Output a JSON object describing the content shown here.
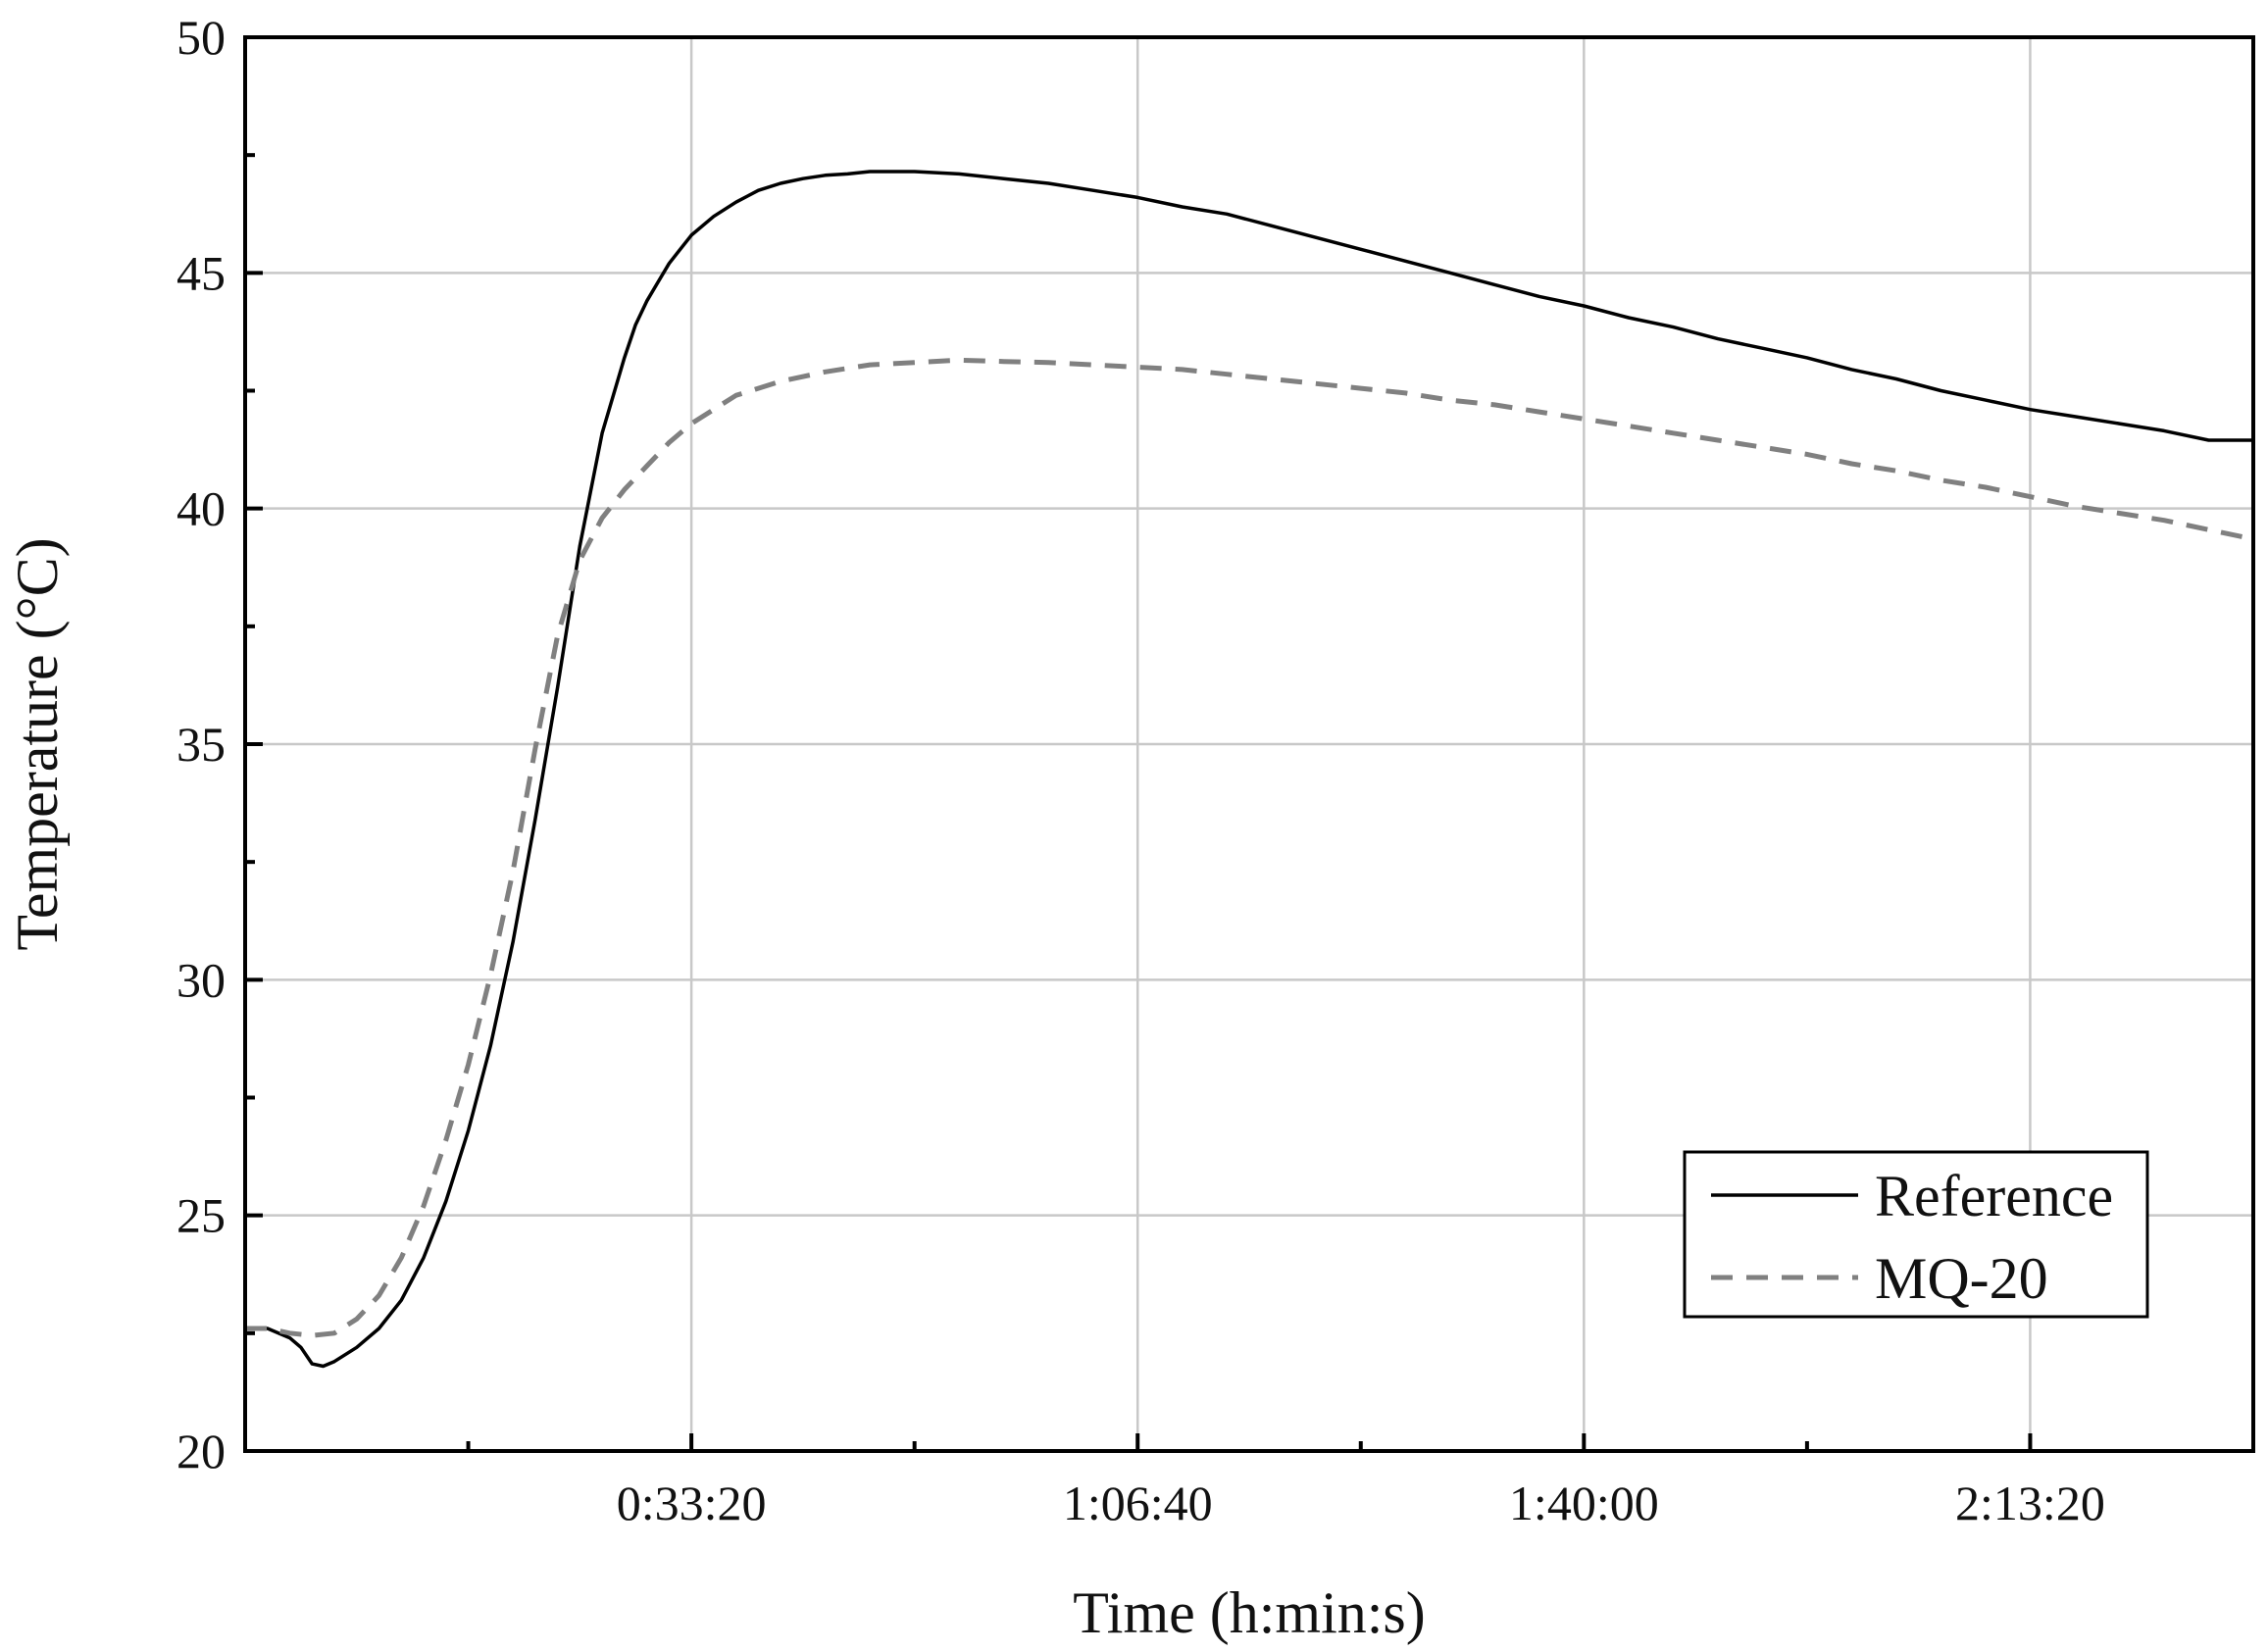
{
  "chart_data": {
    "type": "line",
    "title": "",
    "xlabel": "Time (h:min:s)",
    "ylabel": "Temperature (°C)",
    "x_units": "seconds",
    "xlim": [
      0,
      9000
    ],
    "ylim": [
      20,
      50
    ],
    "x_ticks": [
      2000,
      4000,
      6000,
      8000
    ],
    "x_tick_labels": [
      "0:33:20",
      "1:06:40",
      "1:40:00",
      "2:13:20"
    ],
    "x_minor_ticks": [
      1000,
      3000,
      5000,
      7000
    ],
    "y_ticks": [
      20,
      25,
      30,
      35,
      40,
      45,
      50
    ],
    "y_tick_labels": [
      "20",
      "25",
      "30",
      "35",
      "40",
      "45",
      "50"
    ],
    "y_minor_ticks": [
      22.5,
      27.5,
      32.5,
      37.5,
      42.5,
      47.5
    ],
    "grid": true,
    "legend_position": "bottom-right",
    "series": [
      {
        "name": "Reference",
        "color": "#000000",
        "style": "solid",
        "x": [
          0,
          100,
          200,
          250,
          300,
          350,
          400,
          500,
          600,
          700,
          800,
          900,
          1000,
          1100,
          1200,
          1300,
          1400,
          1500,
          1600,
          1700,
          1750,
          1800,
          1850,
          1900,
          1950,
          2000,
          2100,
          2200,
          2300,
          2400,
          2500,
          2600,
          2700,
          2800,
          3000,
          3200,
          3400,
          3600,
          3800,
          4000,
          4200,
          4400,
          4600,
          4800,
          5000,
          5200,
          5400,
          5600,
          5800,
          6000,
          6200,
          6400,
          6600,
          6800,
          7000,
          7200,
          7400,
          7600,
          7800,
          8000,
          8200,
          8400,
          8600,
          8800,
          9000
        ],
        "y": [
          22.6,
          22.6,
          22.4,
          22.2,
          21.85,
          21.8,
          21.9,
          22.2,
          22.6,
          23.2,
          24.1,
          25.3,
          26.8,
          28.6,
          30.8,
          33.4,
          36.2,
          39.2,
          41.6,
          43.2,
          43.9,
          44.4,
          44.8,
          45.2,
          45.5,
          45.8,
          46.2,
          46.5,
          46.75,
          46.9,
          47.0,
          47.07,
          47.1,
          47.15,
          47.15,
          47.1,
          47.0,
          46.9,
          46.75,
          46.6,
          46.4,
          46.25,
          46.0,
          45.75,
          45.5,
          45.25,
          45.0,
          44.75,
          44.5,
          44.3,
          44.05,
          43.85,
          43.6,
          43.4,
          43.2,
          42.95,
          42.75,
          42.5,
          42.3,
          42.1,
          41.95,
          41.8,
          41.65,
          41.45,
          41.45
        ]
      },
      {
        "name": "MQ-20",
        "color": "#808080",
        "style": "dashed",
        "x": [
          0,
          100,
          200,
          300,
          400,
          500,
          600,
          700,
          800,
          900,
          1000,
          1100,
          1200,
          1300,
          1400,
          1500,
          1600,
          1700,
          1800,
          1900,
          2000,
          2100,
          2200,
          2300,
          2400,
          2600,
          2800,
          3000,
          3200,
          3400,
          3600,
          3800,
          4000,
          4200,
          4400,
          4600,
          4800,
          5000,
          5200,
          5400,
          5600,
          5800,
          6000,
          6200,
          6400,
          6600,
          6800,
          7000,
          7200,
          7400,
          7600,
          7800,
          8000,
          8200,
          8400,
          8600,
          8800,
          9000
        ],
        "y": [
          22.6,
          22.6,
          22.5,
          22.45,
          22.5,
          22.8,
          23.3,
          24.1,
          25.2,
          26.6,
          28.2,
          30.1,
          32.3,
          34.9,
          37.3,
          38.9,
          39.8,
          40.4,
          40.9,
          41.4,
          41.8,
          42.1,
          42.4,
          42.55,
          42.7,
          42.9,
          43.05,
          43.1,
          43.15,
          43.12,
          43.1,
          43.05,
          43.0,
          42.95,
          42.85,
          42.75,
          42.65,
          42.55,
          42.45,
          42.3,
          42.2,
          42.05,
          41.9,
          41.75,
          41.6,
          41.45,
          41.3,
          41.15,
          40.95,
          40.8,
          40.6,
          40.45,
          40.25,
          40.05,
          39.9,
          39.75,
          39.55,
          39.35
        ]
      }
    ]
  }
}
